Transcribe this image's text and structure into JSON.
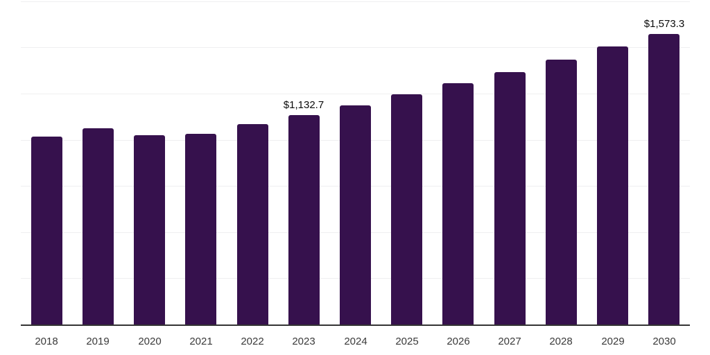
{
  "chart_data": {
    "type": "bar",
    "title": "",
    "xlabel": "",
    "ylabel": "",
    "categories": [
      "2018",
      "2019",
      "2020",
      "2021",
      "2022",
      "2023",
      "2024",
      "2025",
      "2026",
      "2027",
      "2028",
      "2029",
      "2030"
    ],
    "values": [
      1018,
      1064,
      1023,
      1031,
      1083,
      1132.7,
      1186,
      1246,
      1308,
      1368,
      1435,
      1507,
      1573.3
    ],
    "point_labels": [
      "",
      "",
      "",
      "",
      "",
      "$1,132.7",
      "",
      "",
      "",
      "",
      "",
      "",
      "$1,573.3"
    ],
    "ylim": [
      0,
      1750
    ],
    "ytick_step": 250,
    "ytick_labels_shown": false,
    "grid": "horizontal",
    "legend": "none",
    "colors": {
      "bar": "#36114D",
      "axis_line": "#333333",
      "gridline": "#EFEFF0",
      "tick_label": "#3A3A3A",
      "data_label": "#0A0A0A",
      "background": "#FFFFFF"
    }
  }
}
